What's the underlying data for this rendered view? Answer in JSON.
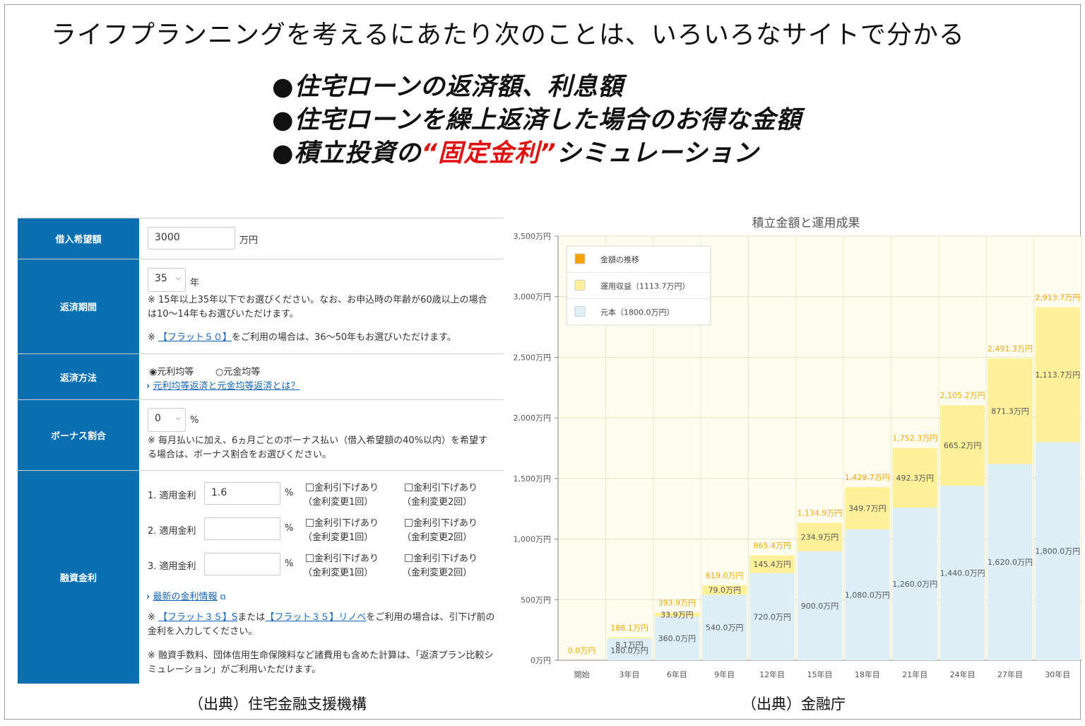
{
  "headline": "ライフプランニングを考えるにあたり次のことは、いろいろなサイトで分かる",
  "bullets": [
    {
      "text": "●住宅ローンの返済額、利息額"
    },
    {
      "text": "●住宅ローンを繰上返済した場合のお得な金額"
    },
    {
      "prefix": "●積立投資の",
      "highlight": "“固定金利”",
      "suffix": "シミュレーション"
    }
  ],
  "form": {
    "loan_amount": {
      "label": "借入希望額",
      "value": "3000",
      "unit": "万円"
    },
    "period": {
      "label": "返済期間",
      "value": "35",
      "unit": "年",
      "note1": "※ 15年以上35年以下でお選びください。なお、お申込時の年齢が60歳以上の場合は10～14年もお選びいただけます。",
      "note2_prefix": "※ ",
      "note2_link": "【フラット５０】",
      "note2_suffix": "をご利用の場合は、36～50年もお選びいただけます。"
    },
    "method": {
      "label": "返済方法",
      "option1": "◉元利均等",
      "option2": "○元金均等",
      "link_arrow": "›",
      "link": "元利均等返済と元金均等返済とは？"
    },
    "bonus": {
      "label": "ボーナス割合",
      "value": "0",
      "unit": "%",
      "note": "※ 毎月払いに加え、6ヵ月ごとのボーナス払い（借入希望額の40%以内）を希望する場合は、ボーナス割合をお選びください。"
    },
    "rate": {
      "label": "融資金利",
      "rows": [
        {
          "label": "1. 適用金利",
          "value": "1.6",
          "unit": "%"
        },
        {
          "label": "2. 適用金利",
          "value": "",
          "unit": "%"
        },
        {
          "label": "3. 適用金利",
          "value": "",
          "unit": "%"
        }
      ],
      "check1_line1": "金利引下げあり",
      "check1_line2": "（金利変更1回）",
      "check2_line1": "金利引下げあり",
      "check2_line2": "（金利変更2回）",
      "latest_arrow": "›",
      "latest_link": "最新の金利情報",
      "note1_prefix": "※ ",
      "note1_link1": "【フラット３５】S",
      "note1_mid": "または",
      "note1_link2": "【フラット３５】リノベ",
      "note1_suffix": "をご利用の場合は、引下げ前の金利を入力してください。",
      "note2": "※ 融資手数料、団体信用生命保険料など諸費用も含めた計算は、「返済プラン比較シミュレーション」がご利用いただけます。"
    }
  },
  "captions": {
    "left": "（出典）住宅金融支援機構",
    "right": "（出典）金融庁"
  },
  "colors": {
    "form_label_bg": "#0a6fb1",
    "principal": "#ddeef6",
    "gain": "#fff09a",
    "total_label": "#f0a800",
    "legend_total": "#f5a300",
    "highlight_red": "#e01010"
  },
  "chart_data": {
    "type": "bar",
    "title": "積立金額と運用成果",
    "categories": [
      "開始",
      "3年目",
      "6年目",
      "9年目",
      "12年目",
      "15年目",
      "18年目",
      "21年目",
      "24年目",
      "27年目",
      "30年目"
    ],
    "series": [
      {
        "name": "元本（1800.0万円）",
        "values": [
          0,
          180.0,
          360.0,
          540.0,
          720.0,
          900.0,
          1080.0,
          1260.0,
          1440.0,
          1620.0,
          1800.0
        ],
        "labels": [
          "",
          "180.0万円",
          "360.0万円",
          "540.0万円",
          "720.0万円",
          "900.0万円",
          "1,080.0万円",
          "1,260.0万円",
          "1,440.0万円",
          "1,620.0万円",
          "1,800.0万円"
        ]
      },
      {
        "name": "運用収益（1113.7万円）",
        "values": [
          0,
          8.1,
          33.9,
          79.0,
          145.4,
          234.9,
          349.7,
          492.3,
          665.2,
          871.3,
          1113.7
        ],
        "labels": [
          "",
          "8.1万円",
          "33.9万円",
          "79.0万円",
          "145.4万円",
          "234.9万円",
          "349.7万円",
          "492.3万円",
          "665.2万円",
          "871.3万円",
          "1,113.7万円"
        ]
      }
    ],
    "totals": [
      0.0,
      188.1,
      393.9,
      619.0,
      865.4,
      1134.9,
      1429.7,
      1752.3,
      2105.2,
      2491.3,
      2913.7
    ],
    "total_labels": [
      "0.0万円",
      "188.1万円",
      "393.9万円",
      "619.0万円",
      "865.4万円",
      "1,134.9万円",
      "1,429.7万円",
      "1,752.3万円",
      "2,105.2万円",
      "2,491.3万円",
      "2,913.7万円"
    ],
    "legend": [
      "金額の推移",
      "運用収益（1113.7万円）",
      "元本（1800.0万円）"
    ],
    "legend_placement": "top-left",
    "ylim": [
      0,
      3500
    ],
    "yticks": [
      0,
      500,
      1000,
      1500,
      2000,
      2500,
      3000,
      3500
    ],
    "ytick_labels": [
      "0万円",
      "500万円",
      "1,000万円",
      "1,500万円",
      "2,000万円",
      "2,500万円",
      "3,000万円",
      "3,500万円"
    ],
    "grid": true,
    "stacked": true
  }
}
